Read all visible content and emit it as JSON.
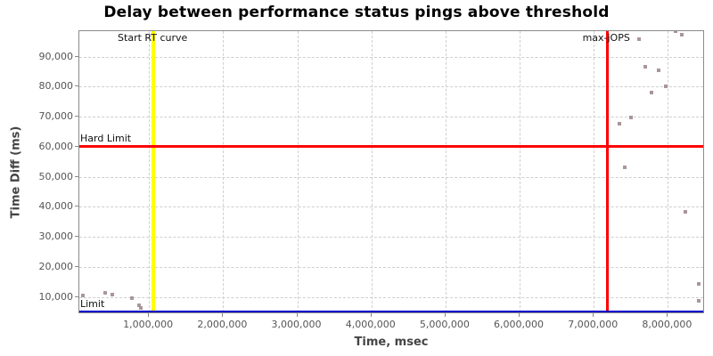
{
  "chart_data": {
    "type": "scatter",
    "title": "Delay between performance status pings above threshold",
    "xlabel": "Time, msec",
    "ylabel": "Time Diff (ms)",
    "xlim": [
      60000,
      8500000
    ],
    "ylim": [
      4300,
      98500
    ],
    "grid": true,
    "legend_position": "none",
    "point_color": "#a9969a",
    "x_ticks": [
      {
        "value": 1000000,
        "label": "1,000,000"
      },
      {
        "value": 2000000,
        "label": "2,000,000"
      },
      {
        "value": 3000000,
        "label": "3,000,000"
      },
      {
        "value": 4000000,
        "label": "4,000,000"
      },
      {
        "value": 5000000,
        "label": "5,000,000"
      },
      {
        "value": 6000000,
        "label": "6,000,000"
      },
      {
        "value": 7000000,
        "label": "7,000,000"
      },
      {
        "value": 8000000,
        "label": "8,000,000"
      }
    ],
    "y_ticks": [
      {
        "value": 10000,
        "label": "10,000"
      },
      {
        "value": 20000,
        "label": "20,000"
      },
      {
        "value": 30000,
        "label": "30,000"
      },
      {
        "value": 40000,
        "label": "40,000"
      },
      {
        "value": 50000,
        "label": "50,000"
      },
      {
        "value": 60000,
        "label": "60,000"
      },
      {
        "value": 70000,
        "label": "70,000"
      },
      {
        "value": 80000,
        "label": "80,000"
      },
      {
        "value": 90000,
        "label": "90,000"
      }
    ],
    "markers": [
      {
        "label": "Start RT curve",
        "axis": "x",
        "value": 1060000,
        "color": "#ffff00",
        "thickness": 4,
        "label_pos": "top-center"
      },
      {
        "label": "max-jOPS",
        "axis": "x",
        "value": 7180000,
        "color": "#ff0000",
        "thickness": 3,
        "label_pos": "top-center"
      },
      {
        "label": "Hard Limit",
        "axis": "y",
        "value": 60000,
        "color": "#ff0000",
        "thickness": 3,
        "label_pos": "left-above"
      },
      {
        "label": "Limit",
        "axis": "y",
        "value": 5000,
        "color": "#0000cc",
        "thickness": 3,
        "label_pos": "left-above"
      }
    ],
    "points": [
      [
        107000,
        10500
      ],
      [
        410000,
        11500
      ],
      [
        510000,
        10900
      ],
      [
        770000,
        9500
      ],
      [
        870000,
        7300
      ],
      [
        890000,
        6500
      ],
      [
        7350000,
        67700
      ],
      [
        7420000,
        53300
      ],
      [
        7500000,
        69900
      ],
      [
        7610000,
        95900
      ],
      [
        7700000,
        86700
      ],
      [
        7780000,
        78200
      ],
      [
        7880000,
        85400
      ],
      [
        7970000,
        80200
      ],
      [
        8100000,
        98400
      ],
      [
        8190000,
        97300
      ],
      [
        8240000,
        38300
      ],
      [
        8410000,
        14300
      ],
      [
        8420000,
        8600
      ]
    ]
  }
}
